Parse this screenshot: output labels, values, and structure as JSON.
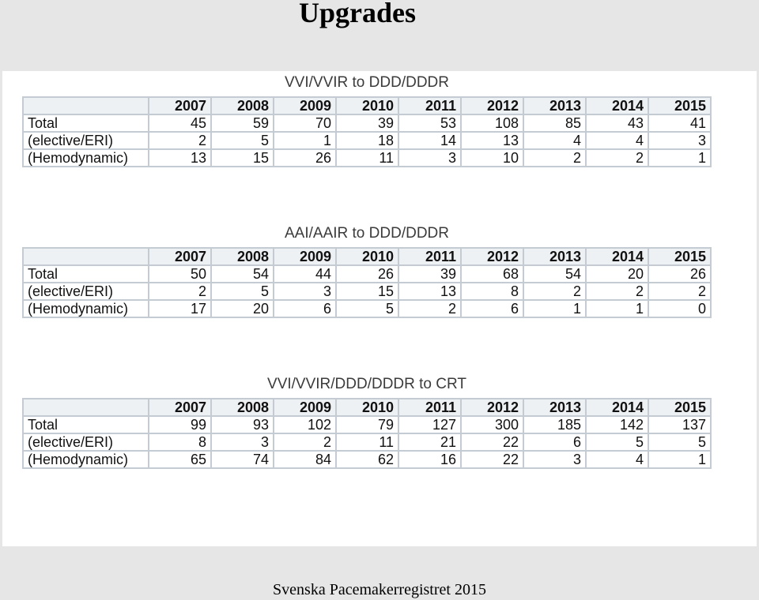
{
  "title": "Upgrades",
  "footer": "Svenska Pacemakerregistret 2015",
  "years": [
    "2007",
    "2008",
    "2009",
    "2010",
    "2011",
    "2012",
    "2013",
    "2014",
    "2015"
  ],
  "tables": [
    {
      "title": "VVI/VVIR to DDD/DDDR",
      "rows": [
        {
          "label": "Total",
          "values": [
            "45",
            "59",
            "70",
            "39",
            "53",
            "108",
            "85",
            "43",
            "41"
          ]
        },
        {
          "label": "(elective/ERI)",
          "values": [
            "2",
            "5",
            "1",
            "18",
            "14",
            "13",
            "4",
            "4",
            "3"
          ]
        },
        {
          "label": "(Hemodynamic)",
          "values": [
            "13",
            "15",
            "26",
            "11",
            "3",
            "10",
            "2",
            "2",
            "1"
          ]
        }
      ]
    },
    {
      "title": "AAI/AAIR to DDD/DDDR",
      "rows": [
        {
          "label": "Total",
          "values": [
            "50",
            "54",
            "44",
            "26",
            "39",
            "68",
            "54",
            "20",
            "26"
          ]
        },
        {
          "label": "(elective/ERI)",
          "values": [
            "2",
            "5",
            "3",
            "15",
            "13",
            "8",
            "2",
            "2",
            "2"
          ]
        },
        {
          "label": "(Hemodynamic)",
          "values": [
            "17",
            "20",
            "6",
            "5",
            "2",
            "6",
            "1",
            "1",
            "0"
          ]
        }
      ]
    },
    {
      "title": "VVI/VVIR/DDD/DDDR to CRT",
      "rows": [
        {
          "label": "Total",
          "values": [
            "99",
            "93",
            "102",
            "79",
            "127",
            "300",
            "185",
            "142",
            "137"
          ]
        },
        {
          "label": "(elective/ERI)",
          "values": [
            "8",
            "3",
            "2",
            "11",
            "21",
            "22",
            "6",
            "5",
            "5"
          ]
        },
        {
          "label": "(Hemodynamic)",
          "values": [
            "65",
            "74",
            "84",
            "62",
            "16",
            "22",
            "3",
            "4",
            "1"
          ]
        }
      ]
    }
  ]
}
